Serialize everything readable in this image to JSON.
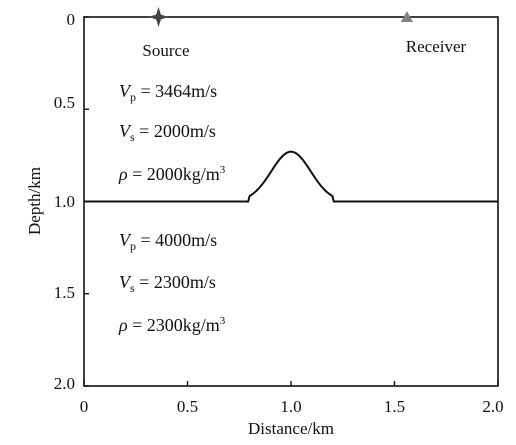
{
  "diagram": {
    "x_axis": {
      "label": "Distance/km",
      "ticks": [
        "0",
        "0.5",
        "1.0",
        "1.5",
        "2.0"
      ],
      "tick_values": [
        0,
        0.5,
        1.0,
        1.5,
        2.0
      ],
      "range": [
        0,
        2.0
      ]
    },
    "y_axis": {
      "label": "Depth/km",
      "ticks": [
        "0",
        "0.5",
        "1.0",
        "1.5",
        "2.0"
      ],
      "tick_values": [
        0,
        0.5,
        1.0,
        1.5,
        2.0
      ],
      "range": [
        0,
        2.0
      ]
    },
    "interface": {
      "flat_depth_km": 1.0,
      "bump_center_km": 1.0,
      "bump_peak_depth_km": 0.73,
      "bump_half_width_km": 0.2
    },
    "source": {
      "label": "Source",
      "distance_km": 0.36,
      "depth_km": 0,
      "icon": "star-icon",
      "color": "#444444"
    },
    "receiver": {
      "label": "Receiver",
      "distance_km": 1.56,
      "depth_km": 0,
      "icon": "triangle-icon",
      "color": "#808080"
    },
    "upper_layer": {
      "vp": {
        "symbol": "V",
        "sub": "p",
        "text": " = 3464m/s"
      },
      "vs": {
        "symbol": "V",
        "sub": "s",
        "text": " = 2000m/s"
      },
      "rho": {
        "symbol": "ρ",
        "text": " = 2000kg/m",
        "sup": "3"
      }
    },
    "lower_layer": {
      "vp": {
        "symbol": "V",
        "sub": "p",
        "text": " = 4000m/s"
      },
      "vs": {
        "symbol": "V",
        "sub": "s",
        "text": " = 2300m/s"
      },
      "rho": {
        "symbol": "ρ",
        "text": " = 2300kg/m",
        "sup": "3"
      }
    }
  }
}
